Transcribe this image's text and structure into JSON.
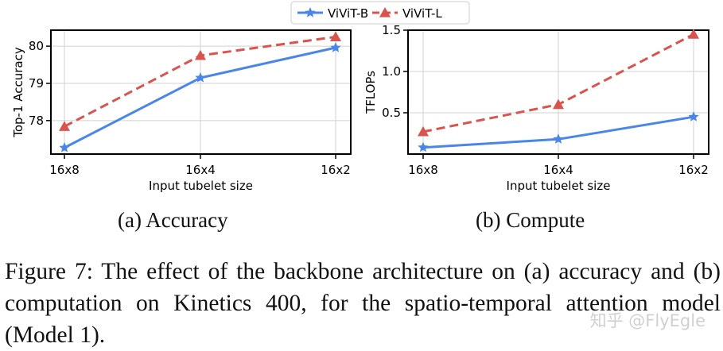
{
  "legend": {
    "items": [
      {
        "label": "ViViT-B",
        "color": "#4a86e8",
        "marker": "star",
        "style": "solid"
      },
      {
        "label": "ViViT-L",
        "color": "#d9534f",
        "marker": "triangle",
        "style": "dashed"
      }
    ]
  },
  "chart_data": [
    {
      "type": "line",
      "categories": [
        "16x8",
        "16x4",
        "16x2"
      ],
      "xlabel": "Input tubelet size",
      "ylabel": "Top-1 Accuracy",
      "ylim": [
        77.1,
        80.43
      ],
      "yticks": [
        78,
        79,
        80
      ],
      "grid": true,
      "series": [
        {
          "name": "ViViT-B",
          "values": [
            77.27,
            79.15,
            79.96
          ]
        },
        {
          "name": "ViViT-L",
          "values": [
            77.84,
            79.75,
            80.25
          ]
        }
      ]
    },
    {
      "type": "line",
      "categories": [
        "16x8",
        "16x4",
        "16x2"
      ],
      "xlabel": "Input tubelet size",
      "ylabel": "TFLOPs",
      "ylim": [
        0.0,
        1.5
      ],
      "yticks": [
        0.5,
        1.0,
        1.5
      ],
      "grid": true,
      "series": [
        {
          "name": "ViViT-B",
          "values": [
            0.08,
            0.18,
            0.45
          ]
        },
        {
          "name": "ViViT-L",
          "values": [
            0.27,
            0.6,
            1.45
          ]
        }
      ]
    }
  ],
  "subcaptions": [
    "(a) Accuracy",
    "(b) Compute"
  ],
  "caption": "Figure 7: The effect of the backbone architecture on (a) accuracy and (b) computation on Kinetics 400, for the spatio-temporal attention model (Model 1).",
  "watermark": "知乎 @FlyEgle"
}
